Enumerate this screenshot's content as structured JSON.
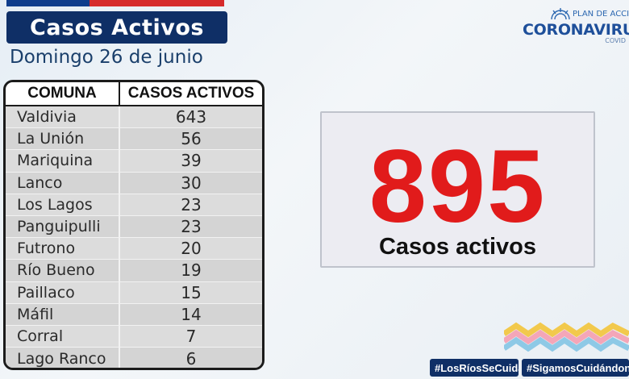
{
  "header": {
    "title": "Casos Activos",
    "date": "Domingo 26 de junio"
  },
  "logo": {
    "plan": "PLAN DE ACCIÓ",
    "name": "CORONAVIRU",
    "sub": "COVID"
  },
  "table": {
    "headers": [
      "COMUNA",
      "CASOS ACTIVOS"
    ],
    "rows": [
      {
        "comuna": "Valdivia",
        "casos": "643"
      },
      {
        "comuna": "La Unión",
        "casos": "56"
      },
      {
        "comuna": "Mariquina",
        "casos": "39"
      },
      {
        "comuna": "Lanco",
        "casos": "30"
      },
      {
        "comuna": "Los Lagos",
        "casos": "23"
      },
      {
        "comuna": "Panguipulli",
        "casos": "23"
      },
      {
        "comuna": "Futrono",
        "casos": "20"
      },
      {
        "comuna": "Río Bueno",
        "casos": "19"
      },
      {
        "comuna": "Paillaco",
        "casos": "15"
      },
      {
        "comuna": "Máfil",
        "casos": "14"
      },
      {
        "comuna": "Corral",
        "casos": "7"
      },
      {
        "comuna": "Lago Ranco",
        "casos": "6"
      }
    ]
  },
  "total": {
    "value": "895",
    "label": "Casos activos"
  },
  "hashtags": [
    "#LosRíosSeCuida",
    "#SigamosCuidándon"
  ],
  "colors": {
    "navy": "#0f2f66",
    "flag_blue": "#0f3d8c",
    "flag_red": "#d62b2b",
    "total_red": "#e11b1b"
  }
}
